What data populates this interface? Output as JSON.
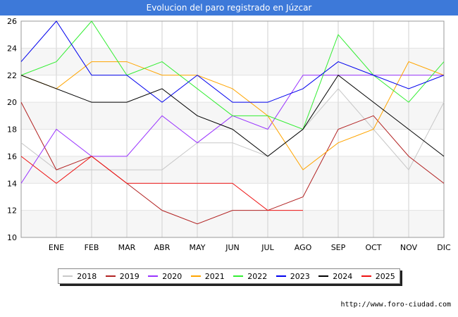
{
  "chart_data": {
    "type": "line",
    "title": "Evolucion del paro registrado en Júzcar",
    "categories": [
      "",
      "ENE",
      "FEB",
      "MAR",
      "ABR",
      "MAY",
      "JUN",
      "JUL",
      "AGO",
      "SEP",
      "OCT",
      "NOV",
      "DIC"
    ],
    "ylim": [
      10,
      26
    ],
    "yticks": [
      10,
      12,
      14,
      16,
      18,
      20,
      22,
      24,
      26
    ],
    "series": [
      {
        "name": "2018",
        "color": "#c8c8c8",
        "values": [
          17,
          15,
          15,
          15,
          15,
          17,
          17,
          16,
          18,
          21,
          18,
          15,
          20
        ]
      },
      {
        "name": "2019",
        "color": "#b22222",
        "values": [
          20,
          15,
          16,
          14,
          12,
          11,
          12,
          12,
          13,
          18,
          19,
          16,
          14
        ]
      },
      {
        "name": "2020",
        "color": "#9933ff",
        "values": [
          14,
          18,
          16,
          16,
          19,
          17,
          19,
          18,
          22,
          22,
          22,
          22,
          22
        ]
      },
      {
        "name": "2021",
        "color": "#ffa500",
        "values": [
          22,
          21,
          23,
          23,
          22,
          22,
          21,
          19,
          15,
          17,
          18,
          23,
          22
        ]
      },
      {
        "name": "2022",
        "color": "#33ee33",
        "values": [
          22,
          23,
          26,
          22,
          23,
          21,
          19,
          19,
          18,
          25,
          22,
          20,
          23
        ]
      },
      {
        "name": "2023",
        "color": "#0000ee",
        "values": [
          23,
          26,
          22,
          22,
          20,
          22,
          20,
          20,
          21,
          23,
          22,
          21,
          22
        ]
      },
      {
        "name": "2024",
        "color": "#000000",
        "values": [
          22,
          21,
          20,
          20,
          21,
          19,
          18,
          16,
          18,
          22,
          20,
          18,
          16
        ]
      },
      {
        "name": "2025",
        "color": "#ee1111",
        "values": [
          16,
          14,
          16,
          14,
          14,
          14,
          14,
          12,
          12,
          null,
          null,
          null,
          null
        ]
      }
    ]
  },
  "source": "http://www.foro-ciudad.com"
}
